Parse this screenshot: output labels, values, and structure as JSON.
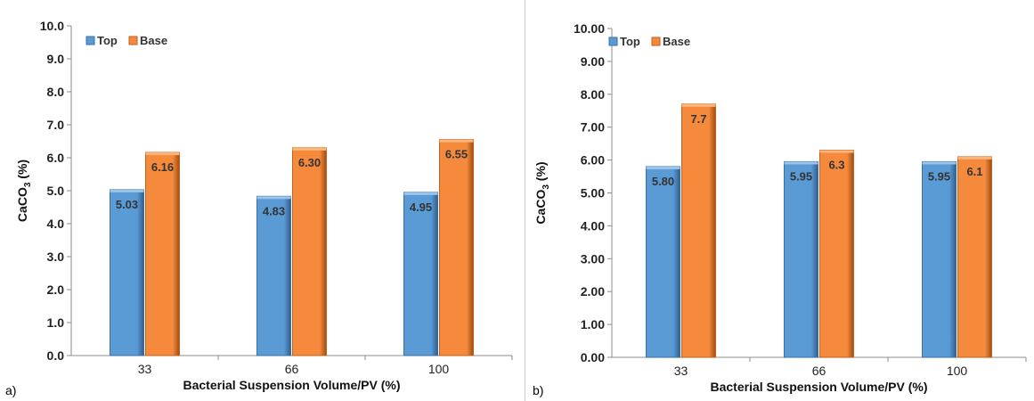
{
  "chart_data": [
    {
      "panel_label": "a)",
      "type": "bar",
      "categories": [
        "33",
        "66",
        "100"
      ],
      "series": [
        {
          "name": "Top",
          "values": [
            5.03,
            4.83,
            4.95
          ],
          "labels": [
            "5.03",
            "4.83",
            "4.95"
          ],
          "color": "#5b9bd5"
        },
        {
          "name": "Base",
          "values": [
            6.16,
            6.3,
            6.55
          ],
          "labels": [
            "6.16",
            "6.30",
            "6.55"
          ],
          "color": "#f58a3c"
        }
      ],
      "xlabel": "Bacterial Suspension Volume/PV (%)",
      "ylabel_main": "CaCO",
      "ylabel_sub": "3",
      "ylabel_unit": " (%)",
      "ylim": [
        0,
        10
      ],
      "yticks": [
        "0.0",
        "1.0",
        "2.0",
        "3.0",
        "4.0",
        "5.0",
        "6.0",
        "7.0",
        "8.0",
        "9.0",
        "10.0"
      ],
      "grid": false,
      "legend_position": "top-left"
    },
    {
      "panel_label": "b)",
      "type": "bar",
      "categories": [
        "33",
        "66",
        "100"
      ],
      "series": [
        {
          "name": "Top",
          "values": [
            5.8,
            5.95,
            5.95
          ],
          "labels": [
            "5.80",
            "5.95",
            "5.95"
          ],
          "color": "#5b9bd5"
        },
        {
          "name": "Base",
          "values": [
            7.7,
            6.3,
            6.1
          ],
          "labels": [
            "7.7",
            "6.3",
            "6.1"
          ],
          "color": "#f58a3c"
        }
      ],
      "xlabel": "Bacterial Suspension Volume/PV (%)",
      "ylabel_main": "CaCO",
      "ylabel_sub": "3",
      "ylabel_unit": " (%)",
      "ylim": [
        0,
        10
      ],
      "yticks": [
        "0.00",
        "1.00",
        "2.00",
        "3.00",
        "4.00",
        "5.00",
        "6.00",
        "7.00",
        "8.00",
        "9.00",
        "10.00"
      ],
      "grid": false,
      "legend_position": "top-left"
    }
  ]
}
